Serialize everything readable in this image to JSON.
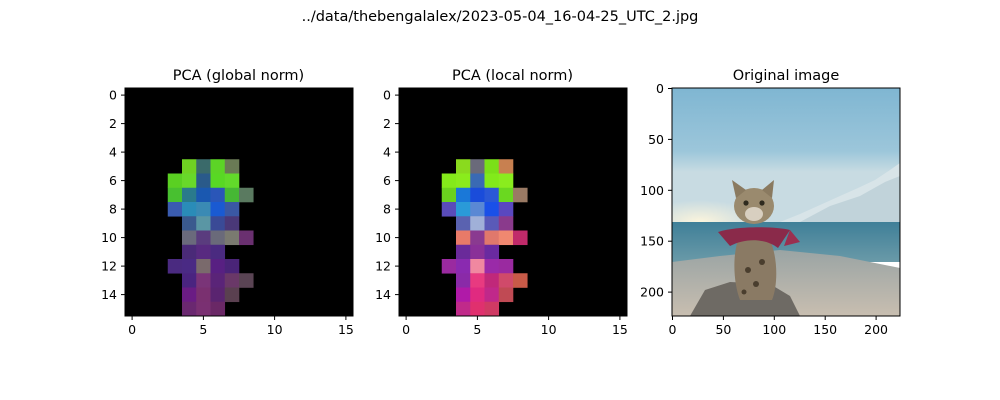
{
  "figure": {
    "suptitle": "../data/thebengalalex/2023-05-04_16-04-25_UTC_2.jpg"
  },
  "chart_data": [
    {
      "type": "heatmap",
      "title": "PCA (global norm)",
      "xlim": [
        -0.5,
        15.5
      ],
      "ylim": [
        15.5,
        -0.5
      ],
      "xticks": [
        "0",
        "5",
        "10",
        "15"
      ],
      "yticks": [
        "0",
        "2",
        "4",
        "6",
        "8",
        "10",
        "12",
        "14"
      ],
      "grid": false,
      "background": "#000000",
      "cells": [
        {
          "r": 5,
          "c": 4,
          "color": "#6fd222"
        },
        {
          "r": 5,
          "c": 5,
          "color": "#3a6a6a"
        },
        {
          "r": 5,
          "c": 6,
          "color": "#5cd426"
        },
        {
          "r": 5,
          "c": 7,
          "color": "#6a7a55"
        },
        {
          "r": 6,
          "c": 3,
          "color": "#5ad022"
        },
        {
          "r": 6,
          "c": 4,
          "color": "#68d82a"
        },
        {
          "r": 6,
          "c": 5,
          "color": "#2a5a8a"
        },
        {
          "r": 6,
          "c": 6,
          "color": "#58d824"
        },
        {
          "r": 6,
          "c": 7,
          "color": "#62da2a"
        },
        {
          "r": 7,
          "c": 3,
          "color": "#48c030"
        },
        {
          "r": 7,
          "c": 4,
          "color": "#2a7a8c"
        },
        {
          "r": 7,
          "c": 5,
          "color": "#1a58b0"
        },
        {
          "r": 7,
          "c": 6,
          "color": "#2a56b8"
        },
        {
          "r": 7,
          "c": 7,
          "color": "#46b834"
        },
        {
          "r": 7,
          "c": 8,
          "color": "#5a7a60"
        },
        {
          "r": 8,
          "c": 3,
          "color": "#3a5cb0"
        },
        {
          "r": 8,
          "c": 4,
          "color": "#2a8cb8"
        },
        {
          "r": 8,
          "c": 5,
          "color": "#3a8ab4"
        },
        {
          "r": 8,
          "c": 6,
          "color": "#1a5ad2"
        },
        {
          "r": 8,
          "c": 7,
          "color": "#3a58a4"
        },
        {
          "r": 9,
          "c": 4,
          "color": "#3a5a8e"
        },
        {
          "r": 9,
          "c": 5,
          "color": "#5a96a4"
        },
        {
          "r": 9,
          "c": 6,
          "color": "#3a4a96"
        },
        {
          "r": 9,
          "c": 7,
          "color": "#4a3878"
        },
        {
          "r": 10,
          "c": 4,
          "color": "#6a6a7c"
        },
        {
          "r": 10,
          "c": 5,
          "color": "#5a3c7e"
        },
        {
          "r": 10,
          "c": 6,
          "color": "#6a6a7a"
        },
        {
          "r": 10,
          "c": 7,
          "color": "#7a7a70"
        },
        {
          "r": 10,
          "c": 8,
          "color": "#6a3070"
        },
        {
          "r": 11,
          "c": 4,
          "color": "#4a2a78"
        },
        {
          "r": 11,
          "c": 5,
          "color": "#582a80"
        },
        {
          "r": 11,
          "c": 6,
          "color": "#4a2a80"
        },
        {
          "r": 12,
          "c": 3,
          "color": "#4a2a80"
        },
        {
          "r": 12,
          "c": 4,
          "color": "#4a2a84"
        },
        {
          "r": 12,
          "c": 5,
          "color": "#7a6a6c"
        },
        {
          "r": 12,
          "c": 6,
          "color": "#582082"
        },
        {
          "r": 12,
          "c": 7,
          "color": "#4a2478"
        },
        {
          "r": 13,
          "c": 4,
          "color": "#4a2480"
        },
        {
          "r": 13,
          "c": 5,
          "color": "#7a3478"
        },
        {
          "r": 13,
          "c": 6,
          "color": "#5a2478"
        },
        {
          "r": 13,
          "c": 7,
          "color": "#6a3868"
        },
        {
          "r": 13,
          "c": 8,
          "color": "#5a4454"
        },
        {
          "r": 14,
          "c": 4,
          "color": "#6a1c84"
        },
        {
          "r": 14,
          "c": 5,
          "color": "#7a3070"
        },
        {
          "r": 14,
          "c": 6,
          "color": "#5a2470"
        },
        {
          "r": 14,
          "c": 7,
          "color": "#5a4050"
        },
        {
          "r": 15,
          "c": 4,
          "color": "#6a2870"
        },
        {
          "r": 15,
          "c": 5,
          "color": "#7a3072"
        },
        {
          "r": 15,
          "c": 6,
          "color": "#6a2866"
        }
      ]
    },
    {
      "type": "heatmap",
      "title": "PCA (local norm)",
      "xlim": [
        -0.5,
        15.5
      ],
      "ylim": [
        15.5,
        -0.5
      ],
      "xticks": [
        "0",
        "5",
        "10",
        "15"
      ],
      "yticks": [
        "0",
        "2",
        "4",
        "6",
        "8",
        "10",
        "12",
        "14"
      ],
      "grid": false,
      "background": "#000000",
      "cells": [
        {
          "r": 5,
          "c": 4,
          "color": "#8ada1e"
        },
        {
          "r": 5,
          "c": 5,
          "color": "#6a6a7a"
        },
        {
          "r": 5,
          "c": 6,
          "color": "#7ae018"
        },
        {
          "r": 5,
          "c": 7,
          "color": "#c88050"
        },
        {
          "r": 6,
          "c": 3,
          "color": "#84ea1a"
        },
        {
          "r": 6,
          "c": 4,
          "color": "#8aec1c"
        },
        {
          "r": 6,
          "c": 5,
          "color": "#3a6ab4"
        },
        {
          "r": 6,
          "c": 6,
          "color": "#82ea1a"
        },
        {
          "r": 6,
          "c": 7,
          "color": "#8aec1e"
        },
        {
          "r": 7,
          "c": 3,
          "color": "#6ad21e"
        },
        {
          "r": 7,
          "c": 4,
          "color": "#1a78d8"
        },
        {
          "r": 7,
          "c": 5,
          "color": "#1a4cda"
        },
        {
          "r": 7,
          "c": 6,
          "color": "#2a58d6"
        },
        {
          "r": 7,
          "c": 7,
          "color": "#6ad820"
        },
        {
          "r": 7,
          "c": 8,
          "color": "#9a7a64"
        },
        {
          "r": 8,
          "c": 3,
          "color": "#5a4cba"
        },
        {
          "r": 8,
          "c": 4,
          "color": "#2a9ad8"
        },
        {
          "r": 8,
          "c": 5,
          "color": "#5a88d4"
        },
        {
          "r": 8,
          "c": 6,
          "color": "#1a50e8"
        },
        {
          "r": 8,
          "c": 7,
          "color": "#5a48c0"
        },
        {
          "r": 9,
          "c": 4,
          "color": "#5a62b0"
        },
        {
          "r": 9,
          "c": 5,
          "color": "#a0b0d8"
        },
        {
          "r": 9,
          "c": 6,
          "color": "#5a5ab8"
        },
        {
          "r": 9,
          "c": 7,
          "color": "#8a3a8c"
        },
        {
          "r": 10,
          "c": 4,
          "color": "#e87a68"
        },
        {
          "r": 10,
          "c": 5,
          "color": "#8a3a90"
        },
        {
          "r": 10,
          "c": 6,
          "color": "#e0786c"
        },
        {
          "r": 10,
          "c": 7,
          "color": "#f08870"
        },
        {
          "r": 10,
          "c": 8,
          "color": "#c02a6a"
        },
        {
          "r": 11,
          "c": 4,
          "color": "#6a2a9a"
        },
        {
          "r": 11,
          "c": 5,
          "color": "#8a3098"
        },
        {
          "r": 11,
          "c": 6,
          "color": "#6a2aa0"
        },
        {
          "r": 12,
          "c": 3,
          "color": "#9a2aa0"
        },
        {
          "r": 12,
          "c": 4,
          "color": "#8a2ab0"
        },
        {
          "r": 12,
          "c": 5,
          "color": "#f088a0"
        },
        {
          "r": 12,
          "c": 6,
          "color": "#9a2aa8"
        },
        {
          "r": 12,
          "c": 7,
          "color": "#9a2aa0"
        },
        {
          "r": 13,
          "c": 4,
          "color": "#8a2aa8"
        },
        {
          "r": 13,
          "c": 5,
          "color": "#e83a80"
        },
        {
          "r": 13,
          "c": 6,
          "color": "#c0287a"
        },
        {
          "r": 13,
          "c": 7,
          "color": "#d04a6a"
        },
        {
          "r": 13,
          "c": 8,
          "color": "#c85a48"
        },
        {
          "r": 14,
          "c": 4,
          "color": "#b01aa8"
        },
        {
          "r": 14,
          "c": 5,
          "color": "#e02a80"
        },
        {
          "r": 14,
          "c": 6,
          "color": "#c0288a"
        },
        {
          "r": 14,
          "c": 7,
          "color": "#c04a54"
        },
        {
          "r": 15,
          "c": 4,
          "color": "#c02a8a"
        },
        {
          "r": 15,
          "c": 5,
          "color": "#e0306e"
        },
        {
          "r": 15,
          "c": 6,
          "color": "#d03a64"
        }
      ]
    },
    {
      "type": "image",
      "title": "Original image",
      "xlim": [
        -0.5,
        223.5
      ],
      "ylim": [
        223.5,
        -0.5
      ],
      "xticks": [
        "0",
        "50",
        "100",
        "150",
        "200"
      ],
      "yticks": [
        "0",
        "50",
        "100",
        "150",
        "200"
      ],
      "grid": false
    }
  ]
}
